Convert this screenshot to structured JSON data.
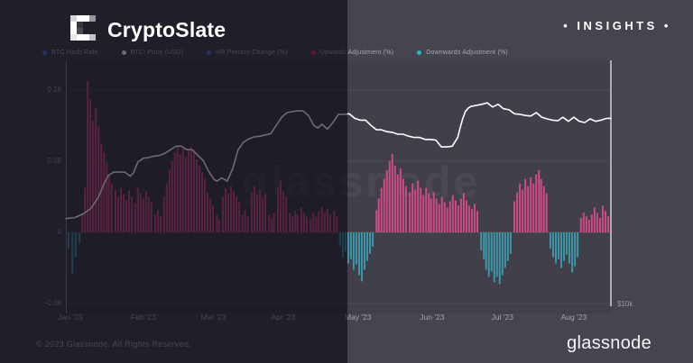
{
  "header": {
    "brand": "CryptoSlate",
    "insights": "• INSIGHTS •"
  },
  "footer": {
    "copyright": "© 2023 Glassnode. All Rights Reserved.",
    "brand": "glassnode"
  },
  "watermark": "glassnode",
  "colors": {
    "background": "#45444f",
    "left_overlay": "rgba(7,6,16,0.60)",
    "up_bar": "#cf4a84",
    "down_bar": "#3d96a8",
    "price_line": "#ffffff",
    "legend_blue": "#5b6ee1",
    "axis_text": "#9b9aa5"
  },
  "legend": [
    {
      "label": "BTC Hash Rate",
      "color": "#5b6ee1"
    },
    {
      "label": "BTC: Price (USD)",
      "color": "#ffffff"
    },
    {
      "label": "HR Percent Change (%)",
      "color": "#5b6ee1"
    },
    {
      "label": "Upwards Adjustment (%)",
      "color": "#d6336c"
    },
    {
      "label": "Downwards Adjustment (%)",
      "color": "#2fb3bd"
    }
  ],
  "chart_data": {
    "type": "mixed",
    "title": "",
    "grid": "horizontal-faint",
    "legend_position": "top",
    "x_axis": {
      "months": [
        {
          "label": "Jan '23",
          "f": 0.008
        },
        {
          "label": "Feb '23",
          "f": 0.142
        },
        {
          "label": "Mar '23",
          "f": 0.271
        },
        {
          "label": "Apr '23",
          "f": 0.399
        },
        {
          "label": "May '23",
          "f": 0.536
        },
        {
          "label": "Jun '23",
          "f": 0.672
        },
        {
          "label": "Jul '23",
          "f": 0.801
        },
        {
          "label": "Aug '23",
          "f": 0.932
        }
      ]
    },
    "left_axis": {
      "title": "Adjustment / HR change",
      "range": [
        -0.095,
        0.175
      ],
      "ticks": [
        {
          "label": "0.16",
          "value": 0.16
        },
        {
          "label": "0.08",
          "value": 0.08
        },
        {
          "label": "0",
          "value": 0
        },
        {
          "label": "-0.08",
          "value": -0.08
        }
      ]
    },
    "right_axis": {
      "scale": "log",
      "unit": "USD",
      "ticks": [
        {
          "label": "$10k",
          "value": 10
        }
      ]
    },
    "price_line": {
      "name": "BTC: Price (USD)",
      "color": "#ffffff",
      "points_f_usdk": [
        [
          0.0,
          16.4
        ],
        [
          0.017,
          16.5
        ],
        [
          0.033,
          16.9
        ],
        [
          0.046,
          17.4
        ],
        [
          0.06,
          18.6
        ],
        [
          0.07,
          20.1
        ],
        [
          0.078,
          21.1
        ],
        [
          0.088,
          21.5
        ],
        [
          0.098,
          21.5
        ],
        [
          0.108,
          21.5
        ],
        [
          0.118,
          21.0
        ],
        [
          0.124,
          21.4
        ],
        [
          0.132,
          22.8
        ],
        [
          0.142,
          23.3
        ],
        [
          0.152,
          23.4
        ],
        [
          0.162,
          23.6
        ],
        [
          0.172,
          23.7
        ],
        [
          0.182,
          24.0
        ],
        [
          0.192,
          24.5
        ],
        [
          0.202,
          25.0
        ],
        [
          0.212,
          25.0
        ],
        [
          0.222,
          24.5
        ],
        [
          0.232,
          24.5
        ],
        [
          0.242,
          23.7
        ],
        [
          0.252,
          23.0
        ],
        [
          0.262,
          21.6
        ],
        [
          0.272,
          20.6
        ],
        [
          0.277,
          20.4
        ],
        [
          0.286,
          20.8
        ],
        [
          0.296,
          20.4
        ],
        [
          0.306,
          21.9
        ],
        [
          0.316,
          24.5
        ],
        [
          0.326,
          25.6
        ],
        [
          0.336,
          26.1
        ],
        [
          0.346,
          26.4
        ],
        [
          0.356,
          26.5
        ],
        [
          0.366,
          26.7
        ],
        [
          0.376,
          26.9
        ],
        [
          0.386,
          28.2
        ],
        [
          0.396,
          29.6
        ],
        [
          0.406,
          30.4
        ],
        [
          0.416,
          30.6
        ],
        [
          0.425,
          30.7
        ],
        [
          0.435,
          30.7
        ],
        [
          0.445,
          29.9
        ],
        [
          0.455,
          28.2
        ],
        [
          0.462,
          27.8
        ],
        [
          0.47,
          28.4
        ],
        [
          0.48,
          27.6
        ],
        [
          0.49,
          28.7
        ],
        [
          0.5,
          30.1
        ],
        [
          0.51,
          30.1
        ],
        [
          0.52,
          30.2
        ],
        [
          0.53,
          29.4
        ],
        [
          0.54,
          29.1
        ],
        [
          0.55,
          29.1
        ],
        [
          0.56,
          28.2
        ],
        [
          0.57,
          27.5
        ],
        [
          0.579,
          27.5
        ],
        [
          0.589,
          27.2
        ],
        [
          0.599,
          27.1
        ],
        [
          0.609,
          26.8
        ],
        [
          0.619,
          26.8
        ],
        [
          0.629,
          26.5
        ],
        [
          0.639,
          26.3
        ],
        [
          0.649,
          26.3
        ],
        [
          0.659,
          26.0
        ],
        [
          0.669,
          26.0
        ],
        [
          0.679,
          25.9
        ],
        [
          0.689,
          24.9
        ],
        [
          0.699,
          24.9
        ],
        [
          0.709,
          25.0
        ],
        [
          0.719,
          26.3
        ],
        [
          0.723,
          27.7
        ],
        [
          0.728,
          29.3
        ],
        [
          0.733,
          30.6
        ],
        [
          0.738,
          31.2
        ],
        [
          0.743,
          31.5
        ],
        [
          0.753,
          31.7
        ],
        [
          0.763,
          31.9
        ],
        [
          0.773,
          32.2
        ],
        [
          0.783,
          31.4
        ],
        [
          0.793,
          31.9
        ],
        [
          0.803,
          31.1
        ],
        [
          0.813,
          30.9
        ],
        [
          0.823,
          30.2
        ],
        [
          0.833,
          30.1
        ],
        [
          0.843,
          29.9
        ],
        [
          0.853,
          29.8
        ],
        [
          0.863,
          30.4
        ],
        [
          0.873,
          29.6
        ],
        [
          0.883,
          29.3
        ],
        [
          0.893,
          29.1
        ],
        [
          0.903,
          29.0
        ],
        [
          0.912,
          29.6
        ],
        [
          0.922,
          28.9
        ],
        [
          0.932,
          29.6
        ],
        [
          0.942,
          28.9
        ],
        [
          0.952,
          28.7
        ],
        [
          0.962,
          29.3
        ],
        [
          0.972,
          28.9
        ],
        [
          0.982,
          29.1
        ],
        [
          0.992,
          29.4
        ],
        [
          1.0,
          29.4
        ]
      ]
    },
    "adjustment_bars": {
      "up_name": "Upwards Adjustment (%)",
      "down_name": "Downwards Adjustment (%)",
      "up_color": "#cf4a84",
      "down_color": "#3d96a8",
      "points_f_value": [
        [
          0.005,
          -0.018
        ],
        [
          0.012,
          -0.046
        ],
        [
          0.018,
          -0.028
        ],
        [
          0.025,
          -0.012
        ],
        [
          0.03,
          0.02
        ],
        [
          0.035,
          0.05
        ],
        [
          0.04,
          0.17
        ],
        [
          0.045,
          0.15
        ],
        [
          0.05,
          0.125
        ],
        [
          0.055,
          0.14
        ],
        [
          0.06,
          0.12
        ],
        [
          0.065,
          0.1
        ],
        [
          0.07,
          0.09
        ],
        [
          0.075,
          0.078
        ],
        [
          0.079,
          0.065
        ],
        [
          0.084,
          0.055
        ],
        [
          0.091,
          0.048
        ],
        [
          0.096,
          0.04
        ],
        [
          0.101,
          0.05
        ],
        [
          0.106,
          0.043
        ],
        [
          0.111,
          0.036
        ],
        [
          0.116,
          0.047
        ],
        [
          0.121,
          0.04
        ],
        [
          0.127,
          0.033
        ],
        [
          0.132,
          0.05
        ],
        [
          0.137,
          0.044
        ],
        [
          0.142,
          0.038
        ],
        [
          0.147,
          0.046
        ],
        [
          0.152,
          0.04
        ],
        [
          0.157,
          0.034
        ],
        [
          0.164,
          0.02
        ],
        [
          0.169,
          0.025
        ],
        [
          0.174,
          0.018
        ],
        [
          0.18,
          0.04
        ],
        [
          0.185,
          0.055
        ],
        [
          0.19,
          0.07
        ],
        [
          0.195,
          0.08
        ],
        [
          0.2,
          0.09
        ],
        [
          0.205,
          0.096
        ],
        [
          0.21,
          0.088
        ],
        [
          0.215,
          0.094
        ],
        [
          0.22,
          0.085
        ],
        [
          0.225,
          0.092
        ],
        [
          0.23,
          0.096
        ],
        [
          0.235,
          0.09
        ],
        [
          0.24,
          0.082
        ],
        [
          0.245,
          0.075
        ],
        [
          0.25,
          0.068
        ],
        [
          0.255,
          0.06
        ],
        [
          0.26,
          0.045
        ],
        [
          0.265,
          0.038
        ],
        [
          0.27,
          0.03
        ],
        [
          0.277,
          0.02
        ],
        [
          0.281,
          0.015
        ],
        [
          0.288,
          0.04
        ],
        [
          0.293,
          0.05
        ],
        [
          0.298,
          0.044
        ],
        [
          0.303,
          0.052
        ],
        [
          0.308,
          0.046
        ],
        [
          0.313,
          0.04
        ],
        [
          0.318,
          0.035
        ],
        [
          0.324,
          0.02
        ],
        [
          0.329,
          0.025
        ],
        [
          0.334,
          0.018
        ],
        [
          0.341,
          0.045
        ],
        [
          0.346,
          0.052
        ],
        [
          0.351,
          0.042
        ],
        [
          0.356,
          0.048
        ],
        [
          0.361,
          0.038
        ],
        [
          0.366,
          0.044
        ],
        [
          0.373,
          0.02
        ],
        [
          0.378,
          0.016
        ],
        [
          0.382,
          0.022
        ],
        [
          0.389,
          0.05
        ],
        [
          0.394,
          0.058
        ],
        [
          0.399,
          0.046
        ],
        [
          0.404,
          0.04
        ],
        [
          0.411,
          0.022
        ],
        [
          0.416,
          0.018
        ],
        [
          0.421,
          0.024
        ],
        [
          0.425,
          0.02
        ],
        [
          0.432,
          0.028
        ],
        [
          0.437,
          0.022
        ],
        [
          0.442,
          0.018
        ],
        [
          0.449,
          0.016
        ],
        [
          0.454,
          0.022
        ],
        [
          0.459,
          0.018
        ],
        [
          0.464,
          0.024
        ],
        [
          0.47,
          0.028
        ],
        [
          0.475,
          0.022
        ],
        [
          0.48,
          0.026
        ],
        [
          0.485,
          0.02
        ],
        [
          0.492,
          0.024
        ],
        [
          0.497,
          0.018
        ],
        [
          0.503,
          -0.015
        ],
        [
          0.508,
          -0.028
        ],
        [
          0.513,
          -0.022
        ],
        [
          0.518,
          -0.035
        ],
        [
          0.523,
          -0.03
        ],
        [
          0.528,
          -0.042
        ],
        [
          0.533,
          -0.036
        ],
        [
          0.538,
          -0.048
        ],
        [
          0.543,
          -0.055
        ],
        [
          0.548,
          -0.042
        ],
        [
          0.553,
          -0.032
        ],
        [
          0.558,
          -0.024
        ],
        [
          0.563,
          -0.016
        ],
        [
          0.57,
          0.025
        ],
        [
          0.574,
          0.038
        ],
        [
          0.579,
          0.05
        ],
        [
          0.584,
          0.06
        ],
        [
          0.589,
          0.07
        ],
        [
          0.594,
          0.08
        ],
        [
          0.599,
          0.088
        ],
        [
          0.604,
          0.075
        ],
        [
          0.609,
          0.065
        ],
        [
          0.614,
          0.072
        ],
        [
          0.619,
          0.06
        ],
        [
          0.624,
          0.052
        ],
        [
          0.631,
          0.045
        ],
        [
          0.636,
          0.055
        ],
        [
          0.641,
          0.048
        ],
        [
          0.646,
          0.058
        ],
        [
          0.651,
          0.05
        ],
        [
          0.656,
          0.042
        ],
        [
          0.661,
          0.05
        ],
        [
          0.666,
          0.044
        ],
        [
          0.67,
          0.038
        ],
        [
          0.675,
          0.045
        ],
        [
          0.68,
          0.038
        ],
        [
          0.685,
          0.032
        ],
        [
          0.69,
          0.04
        ],
        [
          0.695,
          0.034
        ],
        [
          0.7,
          0.028
        ],
        [
          0.705,
          0.035
        ],
        [
          0.71,
          0.042
        ],
        [
          0.715,
          0.036
        ],
        [
          0.72,
          0.03
        ],
        [
          0.725,
          0.038
        ],
        [
          0.73,
          0.044
        ],
        [
          0.735,
          0.036
        ],
        [
          0.74,
          0.03
        ],
        [
          0.745,
          0.026
        ],
        [
          0.75,
          0.032
        ],
        [
          0.755,
          0.024
        ],
        [
          0.762,
          -0.02
        ],
        [
          0.767,
          -0.03
        ],
        [
          0.771,
          -0.042
        ],
        [
          0.776,
          -0.05
        ],
        [
          0.781,
          -0.044
        ],
        [
          0.786,
          -0.056
        ],
        [
          0.791,
          -0.05
        ],
        [
          0.796,
          -0.058
        ],
        [
          0.801,
          -0.048
        ],
        [
          0.806,
          -0.04
        ],
        [
          0.811,
          -0.032
        ],
        [
          0.816,
          -0.024
        ],
        [
          0.823,
          0.035
        ],
        [
          0.828,
          0.045
        ],
        [
          0.833,
          0.055
        ],
        [
          0.838,
          0.048
        ],
        [
          0.843,
          0.06
        ],
        [
          0.848,
          0.052
        ],
        [
          0.853,
          0.062
        ],
        [
          0.858,
          0.055
        ],
        [
          0.863,
          0.065
        ],
        [
          0.868,
          0.07
        ],
        [
          0.872,
          0.06
        ],
        [
          0.877,
          0.052
        ],
        [
          0.882,
          0.044
        ],
        [
          0.889,
          -0.018
        ],
        [
          0.894,
          -0.028
        ],
        [
          0.899,
          -0.035
        ],
        [
          0.904,
          -0.03
        ],
        [
          0.909,
          -0.04
        ],
        [
          0.914,
          -0.032
        ],
        [
          0.919,
          -0.025
        ],
        [
          0.924,
          -0.035
        ],
        [
          0.929,
          -0.045
        ],
        [
          0.934,
          -0.038
        ],
        [
          0.939,
          -0.028
        ],
        [
          0.945,
          0.016
        ],
        [
          0.95,
          0.022
        ],
        [
          0.955,
          0.018
        ],
        [
          0.96,
          0.014
        ],
        [
          0.965,
          0.02
        ],
        [
          0.97,
          0.028
        ],
        [
          0.975,
          0.022
        ],
        [
          0.98,
          0.016
        ],
        [
          0.985,
          0.03
        ],
        [
          0.99,
          0.024
        ],
        [
          0.995,
          0.018
        ]
      ]
    }
  }
}
